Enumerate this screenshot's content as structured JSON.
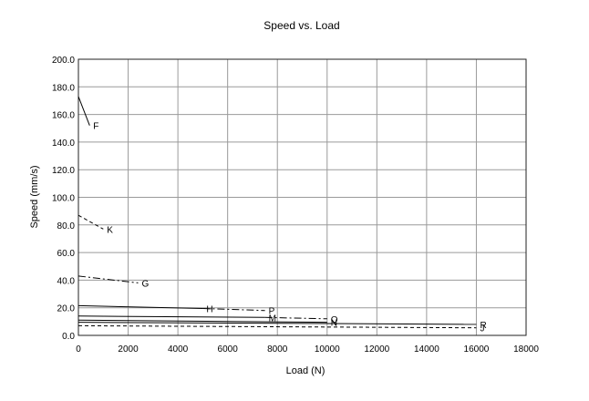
{
  "chart_data": {
    "type": "line",
    "title": "Speed vs. Load",
    "xlabel": "Load (N)",
    "ylabel": "Speed (mm/s)",
    "xlim": [
      0,
      18000
    ],
    "ylim": [
      0,
      200
    ],
    "xticks": [
      "0",
      "2000",
      "4000",
      "6000",
      "8000",
      "10000",
      "12000",
      "14000",
      "16000",
      "18000"
    ],
    "yticks": [
      "0.0",
      "20.0",
      "40.0",
      "60.0",
      "80.0",
      "100.0",
      "120.0",
      "140.0",
      "160.0",
      "180.0",
      "200.0"
    ],
    "grid": true,
    "legend": "none",
    "series": [
      {
        "name": "F",
        "dash": "solid",
        "points": [
          [
            0,
            173
          ],
          [
            450,
            152
          ]
        ]
      },
      {
        "name": "K",
        "dash": "dashed",
        "points": [
          [
            0,
            87
          ],
          [
            400,
            83
          ],
          [
            1000,
            77
          ]
        ]
      },
      {
        "name": "G",
        "dash": "dashdot",
        "points": [
          [
            0,
            43
          ],
          [
            2400,
            38
          ]
        ]
      },
      {
        "name": "H",
        "dash": "solid",
        "points": [
          [
            0,
            21.5
          ],
          [
            5000,
            19.5
          ]
        ]
      },
      {
        "name": "P",
        "dash": "dashdot",
        "points": [
          [
            5000,
            19.5
          ],
          [
            7500,
            18
          ]
        ]
      },
      {
        "name": "M",
        "dash": "solid",
        "points": [
          [
            0,
            14
          ],
          [
            7500,
            13
          ]
        ]
      },
      {
        "name": "Q",
        "dash": "dashdot",
        "points": [
          [
            7500,
            13
          ],
          [
            10000,
            12
          ]
        ]
      },
      {
        "name": "N",
        "dash": "solid",
        "points": [
          [
            0,
            11
          ],
          [
            10000,
            9.5
          ]
        ]
      },
      {
        "name": "R",
        "dash": "solid",
        "points": [
          [
            0,
            9.5
          ],
          [
            16000,
            8
          ]
        ]
      },
      {
        "name": "J",
        "dash": "dashed",
        "points": [
          [
            0,
            7
          ],
          [
            16000,
            5.5
          ]
        ]
      }
    ]
  }
}
